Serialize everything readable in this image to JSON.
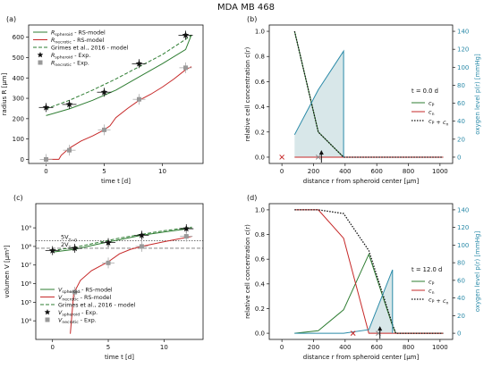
{
  "figure": {
    "title": "MDA MB 468"
  },
  "colors": {
    "green": "#2e7d32",
    "red": "#c62828",
    "teal": "#2a8aa8",
    "shade": "#c8dde0",
    "grey": "#999999",
    "black": "#111111"
  },
  "chart_data": [
    {
      "type": "line",
      "panel_label": "(a)",
      "xlabel": "time t [d]",
      "ylabel": "radius R [μm]",
      "xlim": [
        -1.5,
        13.5
      ],
      "ylim": [
        -20,
        660
      ],
      "xticks": [
        0,
        5,
        10
      ],
      "yticks": [
        0,
        100,
        200,
        300,
        400,
        500,
        600
      ],
      "series": [
        {
          "name": "R_spheroid - RS-model",
          "style": "line",
          "color": "green",
          "points": [
            [
              0,
              215
            ],
            [
              2,
              248
            ],
            [
              4,
              290
            ],
            [
              6,
              340
            ],
            [
              8,
              405
            ],
            [
              10,
              470
            ],
            [
              12,
              540
            ],
            [
              12.5,
              612
            ]
          ]
        },
        {
          "name": "R_necrotic - RS-model",
          "style": "line",
          "color": "red",
          "points": [
            [
              0,
              0
            ],
            [
              1.1,
              0
            ],
            [
              1.3,
              20
            ],
            [
              2,
              55
            ],
            [
              3,
              90
            ],
            [
              4,
              115
            ],
            [
              5,
              145
            ],
            [
              5.5,
              165
            ],
            [
              6,
              205
            ],
            [
              7,
              250
            ],
            [
              8,
              290
            ],
            [
              9,
              320
            ],
            [
              10,
              355
            ],
            [
              11,
              395
            ],
            [
              12,
              440
            ],
            [
              12.5,
              455
            ]
          ]
        },
        {
          "name": "Grimes et al., 2016 - model",
          "style": "dashed",
          "color": "green",
          "points": [
            [
              0,
              248
            ],
            [
              2,
              290
            ],
            [
              4,
              340
            ],
            [
              6,
              395
            ],
            [
              8,
              455
            ],
            [
              10,
              515
            ],
            [
              12,
              590
            ],
            [
              12.5,
              610
            ]
          ]
        },
        {
          "name": "R_spheroid - Exp.",
          "style": "star",
          "color": "black",
          "points": [
            [
              0,
              255
            ],
            [
              2,
              270
            ],
            [
              5,
              330
            ],
            [
              8,
              470
            ],
            [
              12,
              610
            ]
          ]
        },
        {
          "name": "R_necrotic - Exp.",
          "style": "square",
          "color": "grey",
          "points": [
            [
              0,
              0
            ],
            [
              2,
              45
            ],
            [
              5,
              145
            ],
            [
              8,
              295
            ],
            [
              12,
              450
            ]
          ]
        }
      ]
    },
    {
      "type": "line",
      "panel_label": "(b)",
      "xlabel": "distance r from spheroid center [μm]",
      "ylabel": "relative cell concentration c(r)",
      "ylabel_right": "oxygen level p(r) [mmHg]",
      "xlim": [
        -80,
        1080
      ],
      "ylim": [
        -0.05,
        1.05
      ],
      "ylim_right": [
        -7,
        147
      ],
      "xticks": [
        0,
        200,
        400,
        600,
        800,
        1000
      ],
      "yticks": [
        0.0,
        0.2,
        0.4,
        0.6,
        0.8,
        1.0
      ],
      "yticks_right": [
        0,
        20,
        40,
        60,
        80,
        100,
        120,
        140
      ],
      "annotation": "t = 0.0 d",
      "series": [
        {
          "name": "c_P",
          "style": "line",
          "color": "green",
          "points": [
            [
              80,
              1.0
            ],
            [
              230,
              0.2
            ],
            [
              390,
              0.0
            ],
            [
              1020,
              0.0
            ]
          ]
        },
        {
          "name": "c_n",
          "style": "line",
          "color": "red",
          "points": [
            [
              80,
              0.0
            ],
            [
              1020,
              0.0
            ]
          ]
        },
        {
          "name": "c_P + c_n",
          "style": "dotted",
          "color": "black",
          "points": [
            [
              80,
              1.0
            ],
            [
              230,
              0.2
            ],
            [
              390,
              0.0
            ],
            [
              1020,
              0.0
            ]
          ]
        },
        {
          "name": "oxygen",
          "style": "line",
          "color": "teal",
          "axis": "right",
          "points": [
            [
              80,
              25
            ],
            [
              230,
              75
            ],
            [
              390,
              118
            ],
            [
              390,
              0
            ]
          ]
        }
      ],
      "shaded_area_right": [
        [
          80,
          25
        ],
        [
          230,
          75
        ],
        [
          390,
          118
        ],
        [
          390,
          0
        ],
        [
          80,
          0
        ]
      ],
      "markers": {
        "red_x": 0,
        "grey_x": 230,
        "arrow": 250
      }
    },
    {
      "type": "line",
      "panel_label": "(c)",
      "xlabel": "time t [d]",
      "ylabel": "volumen V [μm³]",
      "yscale": "log",
      "xlim": [
        -1.5,
        13.5
      ],
      "ylim": [
        1000,
        20000000000
      ],
      "xticks": [
        0,
        5,
        10
      ],
      "yticks": [
        10000,
        100000,
        1000000,
        10000000,
        100000000,
        1000000000
      ],
      "ytick_labels": [
        "10⁴",
        "10⁵",
        "10⁶",
        "10⁷",
        "10⁸",
        "10⁹"
      ],
      "reference_lines": [
        {
          "label": "5V_{T=0}",
          "value": 200000000
        },
        {
          "label": "2V_{T=0}",
          "value": 80000000
        }
      ],
      "series": [
        {
          "name": "V_spheroid - RS-model",
          "style": "line",
          "color": "green",
          "points": [
            [
              0,
              50000000
            ],
            [
              2,
              70000000
            ],
            [
              4,
              130000000
            ],
            [
              6,
              230000000
            ],
            [
              8,
              400000000
            ],
            [
              10,
              600000000
            ],
            [
              12.5,
              950000000
            ]
          ]
        },
        {
          "name": "V_necrotic - RS-model",
          "style": "line",
          "color": "red",
          "points": [
            [
              1.6,
              2000
            ],
            [
              1.9,
              300000
            ],
            [
              2.5,
              1500000
            ],
            [
              3.5,
              5000000
            ],
            [
              5,
              15000000
            ],
            [
              6,
              40000000
            ],
            [
              7,
              70000000
            ],
            [
              8,
              100000000
            ],
            [
              10,
              180000000
            ],
            [
              12.5,
              350000000
            ]
          ]
        },
        {
          "name": "Grimes et al., 2016 - model",
          "style": "dashed",
          "color": "green",
          "points": [
            [
              0,
              60000000
            ],
            [
              2,
              90000000
            ],
            [
              4,
              160000000
            ],
            [
              6,
              280000000
            ],
            [
              8,
              450000000
            ],
            [
              10,
              700000000
            ],
            [
              12.5,
              1100000000
            ]
          ]
        },
        {
          "name": "V_spheroid - Exp.",
          "style": "star",
          "color": "black",
          "points": [
            [
              0,
              60000000
            ],
            [
              2,
              80000000
            ],
            [
              5,
              160000000
            ],
            [
              8,
              400000000
            ],
            [
              12,
              900000000
            ]
          ]
        },
        {
          "name": "V_necrotic - Exp.",
          "style": "square",
          "color": "grey",
          "points": [
            [
              2,
              350000
            ],
            [
              5,
              13000000
            ],
            [
              8,
              100000000
            ],
            [
              12,
              350000000
            ]
          ]
        }
      ]
    },
    {
      "type": "line",
      "panel_label": "(d)",
      "xlabel": "distance r from spheroid center [μm]",
      "ylabel": "relative cell concentration c(r)",
      "ylabel_right": "oxygen level p(r) [mmHg]",
      "xlim": [
        -80,
        1080
      ],
      "ylim": [
        -0.05,
        1.05
      ],
      "ylim_right": [
        -7,
        147
      ],
      "xticks": [
        0,
        200,
        400,
        600,
        800,
        1000
      ],
      "yticks": [
        0.0,
        0.2,
        0.4,
        0.6,
        0.8,
        1.0
      ],
      "yticks_right": [
        0,
        20,
        40,
        60,
        80,
        100,
        120,
        140
      ],
      "annotation": "t = 12.0 d",
      "series": [
        {
          "name": "c_P",
          "style": "line",
          "color": "green",
          "points": [
            [
              80,
              0.0
            ],
            [
              230,
              0.02
            ],
            [
              390,
              0.19
            ],
            [
              550,
              0.64
            ],
            [
              700,
              0.06
            ],
            [
              720,
              0.0
            ],
            [
              1020,
              0.0
            ]
          ]
        },
        {
          "name": "c_n",
          "style": "line",
          "color": "red",
          "points": [
            [
              80,
              1.0
            ],
            [
              230,
              1.0
            ],
            [
              390,
              0.77
            ],
            [
              550,
              0.0
            ],
            [
              1020,
              0.0
            ]
          ]
        },
        {
          "name": "c_P + c_n",
          "style": "dotted",
          "color": "black",
          "points": [
            [
              80,
              1.0
            ],
            [
              230,
              1.0
            ],
            [
              390,
              0.97
            ],
            [
              550,
              0.67
            ],
            [
              700,
              0.07
            ],
            [
              720,
              0.0
            ],
            [
              1020,
              0.0
            ]
          ]
        },
        {
          "name": "oxygen",
          "style": "line",
          "color": "teal",
          "axis": "right",
          "points": [
            [
              80,
              0
            ],
            [
              390,
              0
            ],
            [
              550,
              4
            ],
            [
              700,
              72
            ],
            [
              700,
              0
            ]
          ]
        }
      ],
      "shaded_area_right": [
        [
          550,
          4
        ],
        [
          700,
          72
        ],
        [
          700,
          0
        ],
        [
          550,
          0
        ]
      ],
      "markers": {
        "red_x": 450,
        "grey_x": 610,
        "arrow": 620
      }
    }
  ]
}
